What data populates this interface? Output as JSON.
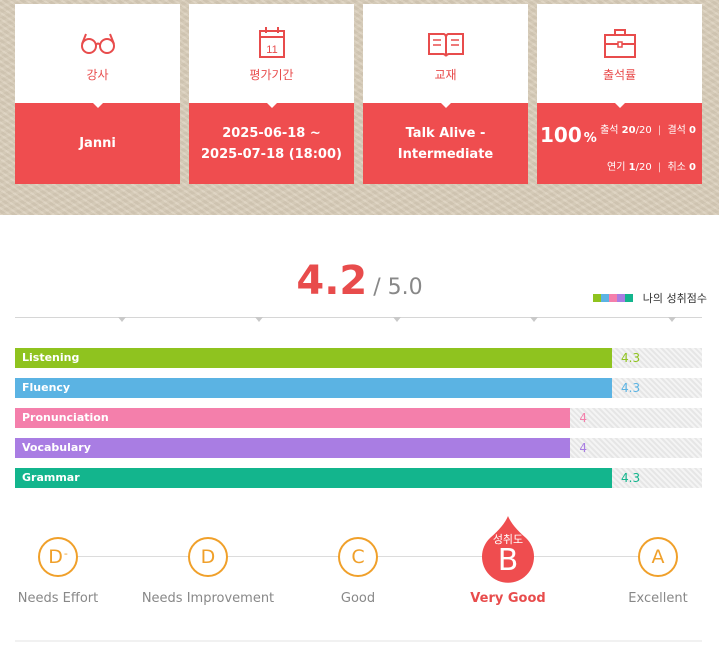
{
  "info_cards": {
    "teacher": {
      "label": "강사",
      "value": "Janni",
      "icon": "glasses-icon"
    },
    "period": {
      "label": "평가기간",
      "value_line1": "2025-06-18 ~",
      "value_line2": "2025-07-18 (18:00)",
      "icon": "calendar-icon",
      "icon_text": "11"
    },
    "textbook": {
      "label": "교재",
      "value": "Talk Alive - Intermediate",
      "icon": "book-icon"
    },
    "attendance": {
      "label": "출석률",
      "icon": "briefcase-icon",
      "percent": "100",
      "percent_unit": "%",
      "attend_label": "출석",
      "attend_value": "20",
      "attend_total": "/20",
      "absent_label": "결석",
      "absent_value": "0",
      "postpone_label": "연기",
      "postpone_value": "1",
      "postpone_total": "/20",
      "cancel_label": "취소",
      "cancel_value": "0"
    }
  },
  "score": {
    "value": "4.2",
    "max": "/ 5.0"
  },
  "legend": {
    "label": "나의 성취점수",
    "colors": [
      "#8fc31f",
      "#5bb3e3",
      "#f47fab",
      "#a97de3",
      "#13b58d"
    ]
  },
  "chart_data": {
    "type": "bar",
    "categories": [
      "Listening",
      "Fluency",
      "Pronunciation",
      "Vocabulary",
      "Grammar"
    ],
    "values": [
      4.3,
      4.3,
      4,
      4,
      4.3
    ],
    "value_labels": [
      "4.3",
      "4.3",
      "4",
      "4",
      "4.3"
    ],
    "colors": [
      "#8fc31f",
      "#5bb3e3",
      "#f47fab",
      "#a97de3",
      "#13b58d"
    ],
    "xlim": [
      0,
      5
    ]
  },
  "grade_scale": {
    "grades": [
      {
        "letter": "D",
        "sup": "-",
        "label": "Needs Effort"
      },
      {
        "letter": "D",
        "sup": "",
        "label": "Needs Improvement"
      },
      {
        "letter": "C",
        "sup": "",
        "label": "Good"
      },
      {
        "letter": "B",
        "sup": "",
        "label": "Very Good",
        "active": true
      },
      {
        "letter": "A",
        "sup": "",
        "label": "Excellent"
      }
    ],
    "active_caption": "성취도",
    "active_color": "#ef4d4f",
    "ring_color": "#f0a02a"
  }
}
